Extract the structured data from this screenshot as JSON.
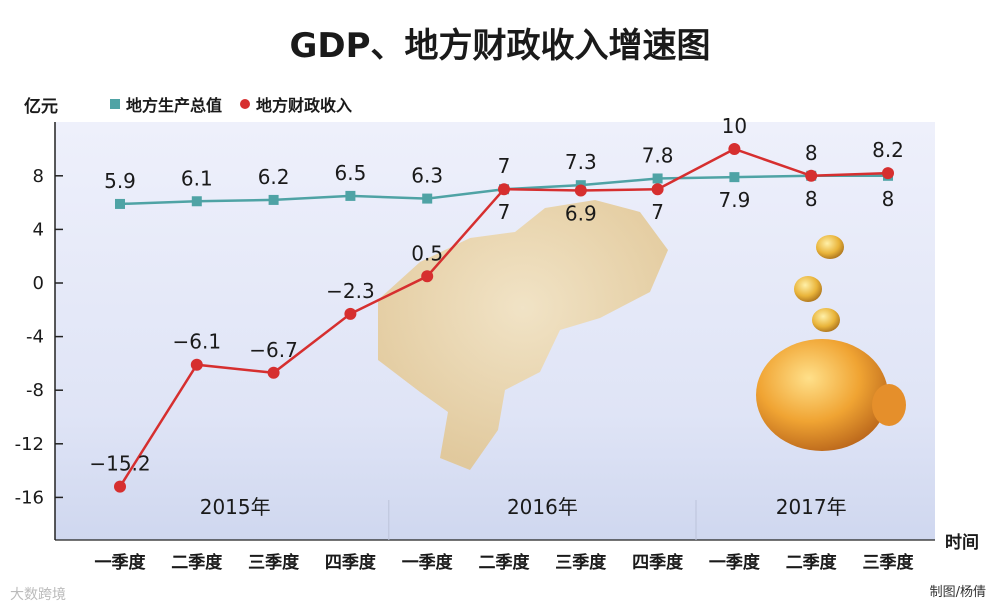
{
  "title": "GDP、地方财政收入增速图",
  "unit": "亿元",
  "legend": {
    "gdp": "地方生产总值",
    "revenue": "地方财政收入"
  },
  "colors": {
    "gdp": "#4fa3a5",
    "revenue": "#d62f2f"
  },
  "xaxis_label": "时间",
  "credit": "制图/杨倩",
  "watermark": "大数跨境",
  "chart_data": {
    "type": "line",
    "categories": [
      "一季度",
      "二季度",
      "三季度",
      "四季度",
      "一季度",
      "二季度",
      "三季度",
      "四季度",
      "一季度",
      "二季度",
      "三季度"
    ],
    "year_groups": [
      {
        "label": "2015年",
        "start": 0,
        "end": 3
      },
      {
        "label": "2016年",
        "start": 4,
        "end": 7
      },
      {
        "label": "2017年",
        "start": 8,
        "end": 10
      }
    ],
    "series": [
      {
        "name": "地方生产总值",
        "values": [
          5.9,
          6.1,
          6.2,
          6.5,
          6.3,
          7,
          7.3,
          7.8,
          7.9,
          8,
          8
        ]
      },
      {
        "name": "地方财政收入",
        "values": [
          -15.2,
          -6.1,
          -6.7,
          -2.3,
          0.5,
          7,
          6.9,
          7,
          10,
          8,
          8.2
        ]
      }
    ],
    "labels_gdp": [
      "5.9",
      "6.1",
      "6.2",
      "6.5",
      "6.3",
      "7",
      "7.3",
      "7.8",
      "7.9",
      "8",
      "8"
    ],
    "labels_revenue": [
      "−15.2",
      "−6.1",
      "−6.7",
      "−2.3",
      "0.5",
      "7",
      "6.9",
      "7",
      "10",
      "8",
      "8.2"
    ],
    "ylim": [
      -18,
      10.5
    ],
    "yticks": [
      8,
      4,
      0,
      -4,
      -8,
      -12,
      -16
    ],
    "ytick_labels": [
      "8",
      "4",
      "0",
      "-4",
      "-8",
      "-12",
      "-16"
    ],
    "xlabel": "时间",
    "ylabel": "亿元",
    "grid": false
  }
}
